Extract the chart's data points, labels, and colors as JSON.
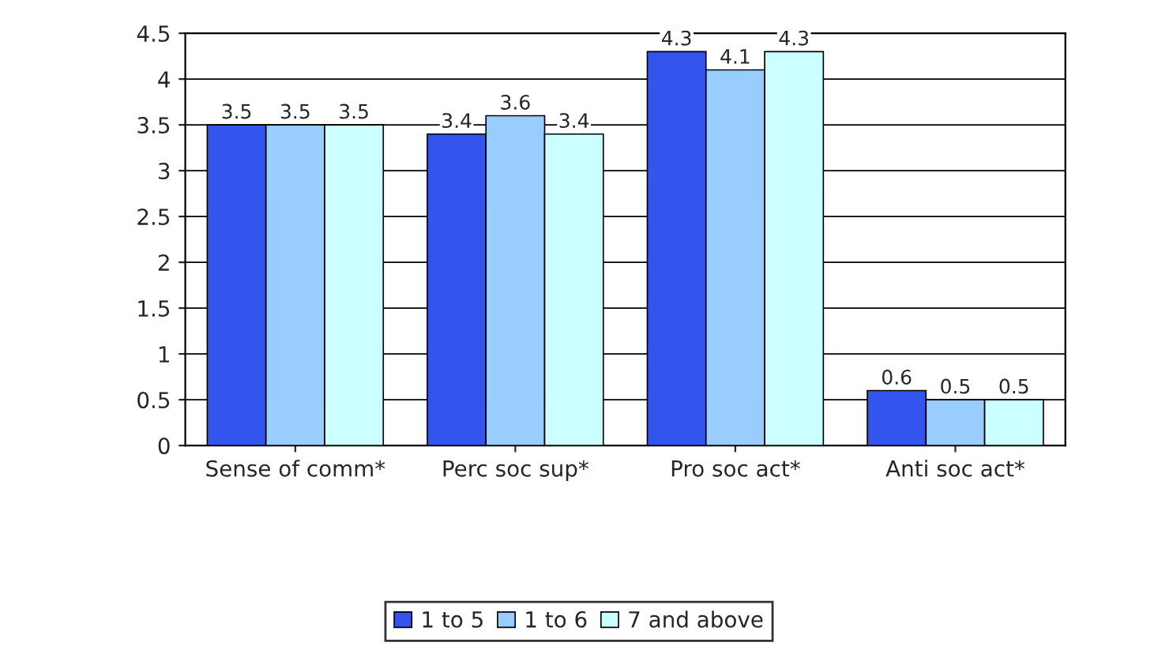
{
  "chart_data": {
    "type": "bar",
    "categories": [
      "Sense of comm*",
      "Perc soc sup*",
      "Pro soc act*",
      "Anti soc act*"
    ],
    "series": [
      {
        "name": "1 to 5",
        "color": "#3355ee",
        "values": [
          3.5,
          3.4,
          4.3,
          0.6
        ]
      },
      {
        "name": "1 to 6",
        "color": "#99ccff",
        "values": [
          3.5,
          3.6,
          4.1,
          0.5
        ]
      },
      {
        "name": "7 and above",
        "color": "#ccffff",
        "values": [
          3.5,
          3.4,
          4.3,
          0.5
        ]
      }
    ],
    "ylim": [
      0,
      4.5
    ],
    "yticks": [
      0,
      0.5,
      1,
      1.5,
      2,
      2.5,
      3,
      3.5,
      4,
      4.5
    ],
    "grid": "y",
    "legend": "bottom",
    "data_labels": true
  }
}
